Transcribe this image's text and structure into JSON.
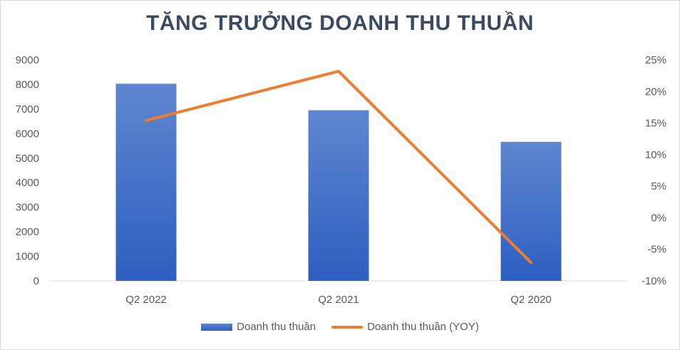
{
  "chart_data": {
    "type": "bar",
    "title": "TĂNG TRƯỞNG DOANH THU THUẦN",
    "categories": [
      "Q2 2022",
      "Q2 2021",
      "Q2 2020"
    ],
    "series": [
      {
        "name": "Doanh thu thuần",
        "type": "bar",
        "axis": "left",
        "values": [
          8030,
          6950,
          5660
        ]
      },
      {
        "name": "Doanh thu thuần (YOY)",
        "type": "line",
        "axis": "right",
        "values": [
          15.4,
          23.2,
          -7.1
        ]
      }
    ],
    "y_left": {
      "min": 0,
      "max": 9000,
      "step": 1000,
      "ticks": [
        "0",
        "1000",
        "2000",
        "3000",
        "4000",
        "5000",
        "6000",
        "7000",
        "8000",
        "9000"
      ]
    },
    "y_right": {
      "min": -10,
      "max": 25,
      "step": 5,
      "ticks": [
        "-10%",
        "-5%",
        "0%",
        "5%",
        "10%",
        "15%",
        "20%",
        "25%"
      ]
    },
    "grid": false,
    "legend_position": "bottom",
    "colors": {
      "bar_top": "#5f86cf",
      "bar_bottom": "#2d5fc0",
      "line": "#ed7d31",
      "axis": "#d9d9d9"
    }
  }
}
